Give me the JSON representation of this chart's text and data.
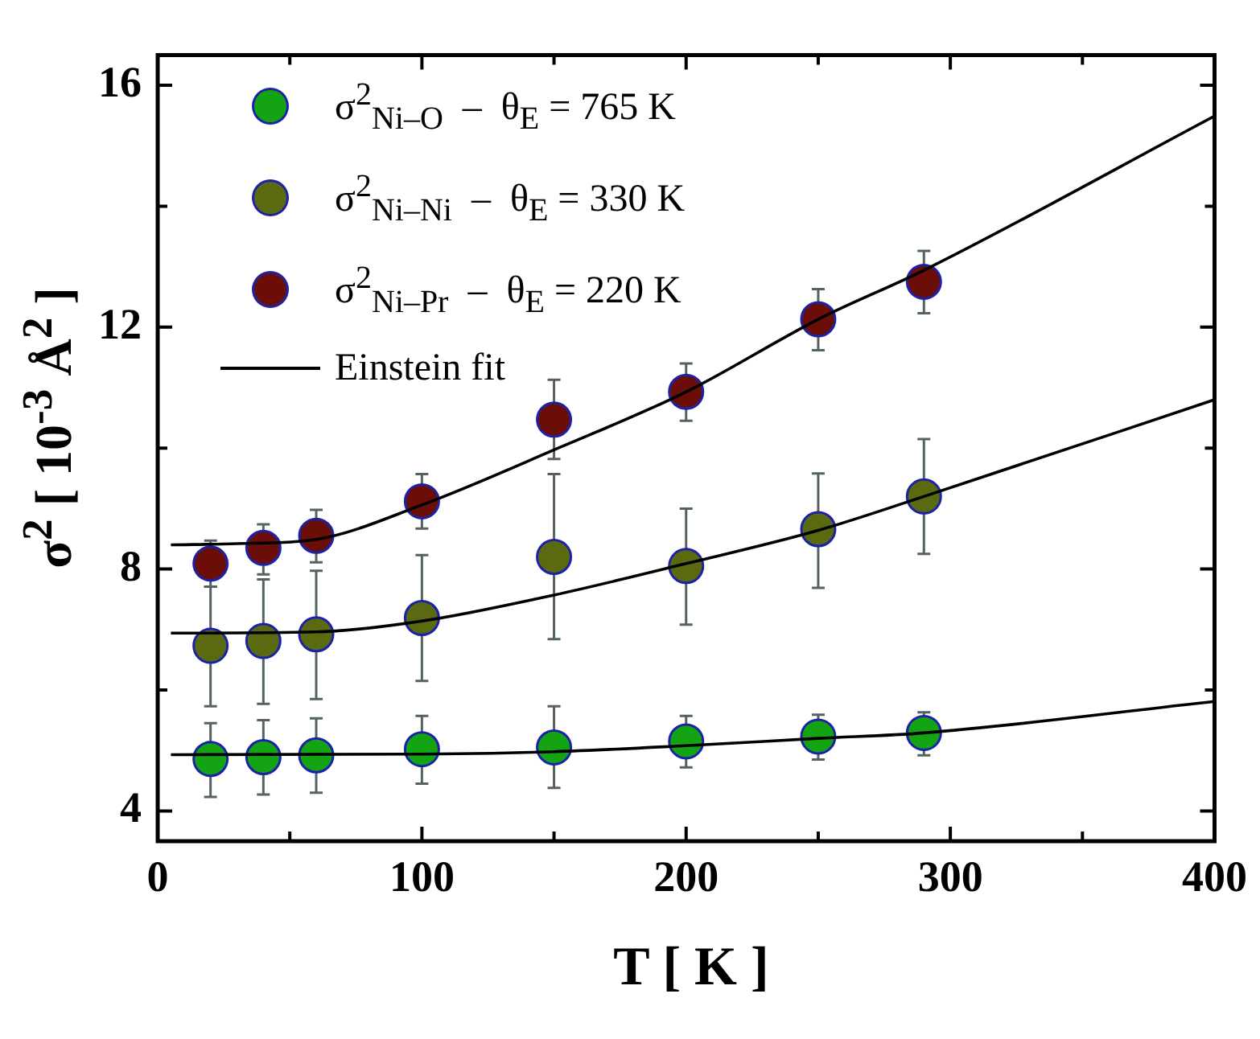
{
  "chart_data": {
    "type": "scatter",
    "xlabel": "T [ K ]",
    "ylabel": "σ$^{2}$ [ 10$^{-3}$ Å$^{2}$ ]",
    "xlim": [
      0,
      400
    ],
    "ylim": [
      3.5,
      16.5
    ],
    "xticks": [
      0,
      {
        "value": 50,
        "label": null
      },
      100,
      {
        "value": 150,
        "label": null
      },
      200,
      {
        "value": 250,
        "label": null
      },
      300,
      {
        "value": 350,
        "label": null
      },
      400
    ],
    "yticks": [
      4,
      {
        "value": 6,
        "label": null
      },
      8,
      {
        "value": 10,
        "label": null
      },
      12,
      {
        "value": 14,
        "label": null
      },
      16
    ],
    "legend": "top left",
    "grid": false,
    "series": [
      {
        "name": "σ$^{2}$$_{Ni–O}$  –  θ$_{E}$ = 765 K",
        "type": "scatter",
        "marker": "circle",
        "color": "#13a313",
        "x": [
          20,
          40,
          60,
          100,
          150,
          200,
          250,
          290
        ],
        "values": [
          4.86,
          4.89,
          4.92,
          5.02,
          5.05,
          5.15,
          5.23,
          5.29
        ],
        "errors": [
          [
            4.23,
            5.45
          ],
          [
            4.27,
            5.5
          ],
          [
            4.3,
            5.53
          ],
          [
            4.45,
            5.57
          ],
          [
            4.38,
            5.73
          ],
          [
            4.72,
            5.57
          ],
          [
            4.85,
            5.59
          ],
          [
            4.92,
            5.63
          ]
        ]
      },
      {
        "name": "σ$^{2}$$_{Ni–Ni}$  –  θ$_{E}$ = 330 K",
        "type": "scatter",
        "marker": "circle",
        "color": "#5a6a10",
        "x": [
          20,
          40,
          60,
          100,
          150,
          200,
          250,
          290
        ],
        "values": [
          6.73,
          6.81,
          6.92,
          7.19,
          8.2,
          8.05,
          8.66,
          9.2
        ],
        "errors": [
          [
            5.73,
            7.71
          ],
          [
            5.77,
            7.83
          ],
          [
            5.85,
            7.97
          ],
          [
            6.15,
            8.23
          ],
          [
            6.84,
            9.57
          ],
          [
            7.08,
            9.0
          ],
          [
            7.69,
            9.58
          ],
          [
            8.25,
            10.15
          ]
        ]
      },
      {
        "name": "σ$^{2}$$_{Ni–Pr}$  –  θ$_{E}$ = 220 K",
        "type": "scatter",
        "marker": "circle",
        "color": "#6b0e08",
        "x": [
          20,
          40,
          60,
          100,
          150,
          200,
          250,
          290
        ],
        "values": [
          8.09,
          8.35,
          8.55,
          9.12,
          10.47,
          10.93,
          12.13,
          12.75
        ],
        "errors": [
          [
            7.71,
            8.47
          ],
          [
            7.91,
            8.74
          ],
          [
            8.11,
            8.98
          ],
          [
            8.67,
            9.57
          ],
          [
            9.82,
            11.13
          ],
          [
            10.45,
            11.4
          ],
          [
            11.62,
            12.63
          ],
          [
            12.23,
            13.26
          ]
        ]
      },
      {
        "name": "Einstein fit",
        "type": "line",
        "marker": "none",
        "line_style": "solid",
        "color": "#000000",
        "x": [
          5,
          100,
          150,
          200,
          250,
          290,
          400
        ],
        "values": [
          4.93,
          4.94,
          4.98,
          5.08,
          5.2,
          5.29,
          5.81
        ]
      },
      {
        "type": "line",
        "marker": "none",
        "line_style": "solid",
        "color": "#000000",
        "x": [
          5,
          60,
          100,
          150,
          200,
          250,
          290,
          400
        ],
        "values": [
          6.94,
          6.96,
          7.14,
          7.57,
          8.09,
          8.64,
          9.2,
          10.8
        ]
      },
      {
        "type": "line",
        "marker": "none",
        "line_style": "solid",
        "color": "#000000",
        "x": [
          5,
          30,
          60,
          100,
          150,
          200,
          250,
          290,
          400
        ],
        "values": [
          8.4,
          8.42,
          8.49,
          9.06,
          9.97,
          10.93,
          12.13,
          12.94,
          15.49
        ]
      }
    ]
  }
}
